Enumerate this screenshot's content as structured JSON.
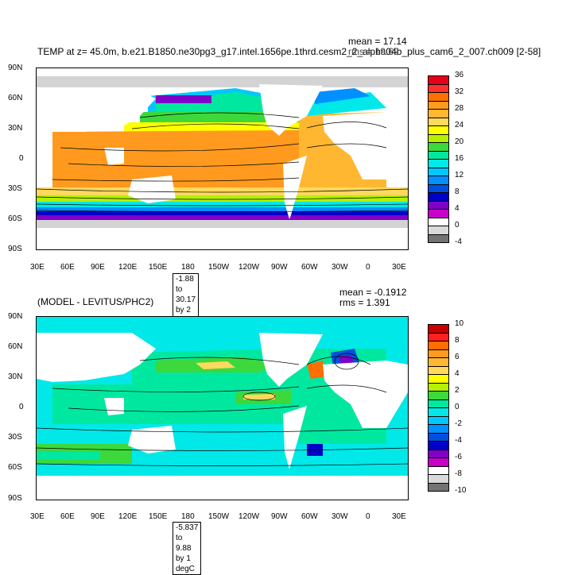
{
  "panels": [
    {
      "id": "top",
      "title": "TEMP at z=  45.0m, b.e21.B1850.ne30pg3_g17.intel.1656pe.1thrd.cesm2_2_alpha04b_plus_cam6_2_007.ch009 [2-58]",
      "mean": "mean = 17.14",
      "rms": "rms = 19.69",
      "range": "-1.88 to 30.17 by 2 degC",
      "lat_ticks": [
        "90N",
        "60N",
        "30N",
        "0",
        "30S",
        "60S",
        "90S"
      ],
      "lon_ticks": [
        "30E",
        "60E",
        "90E",
        "120E",
        "150E",
        "180",
        "150W",
        "120W",
        "90W",
        "60W",
        "30W",
        "0",
        "30E"
      ],
      "colorbar": {
        "labels": [
          "36",
          "32",
          "28",
          "24",
          "20",
          "16",
          "12",
          "8",
          "4",
          "0",
          "-4"
        ],
        "colors": [
          "#e8001a",
          "#ff3030",
          "#ff7000",
          "#ff9a1e",
          "#ffb732",
          "#ffd95e",
          "#ffff00",
          "#b4f000",
          "#3cd83c",
          "#00e8a0",
          "#00e8e8",
          "#00c8ff",
          "#0090ff",
          "#0050e0",
          "#0000c8",
          "#8000c8",
          "#c800c8",
          "#ffffff",
          "#d9d9d9",
          "#737373"
        ]
      }
    },
    {
      "id": "bottom",
      "title": "(MODEL - LEVITUS/PHC2)",
      "mean": "mean = -0.1912",
      "rms": "rms = 1.391",
      "range": "-5.837 to 9.88 by 1 degC",
      "lat_ticks": [
        "90N",
        "60N",
        "30N",
        "0",
        "30S",
        "60S",
        "90S"
      ],
      "lon_ticks": [
        "30E",
        "60E",
        "90E",
        "120E",
        "150E",
        "180",
        "150W",
        "120W",
        "90W",
        "60W",
        "30W",
        "0",
        "30E"
      ],
      "colorbar": {
        "labels": [
          "10",
          "8",
          "6",
          "4",
          "2",
          "0",
          "-2",
          "-4",
          "-6",
          "-8",
          "-10"
        ],
        "colors": [
          "#c80000",
          "#ff2020",
          "#ff6e00",
          "#ff9a1e",
          "#ffb732",
          "#ffd95e",
          "#ffff00",
          "#b4f000",
          "#3cd83c",
          "#00e8a0",
          "#00e8e8",
          "#00c8ff",
          "#0090ff",
          "#0050e0",
          "#0000c8",
          "#8000c8",
          "#c800c8",
          "#ffffff",
          "#d9d9d9",
          "#737373"
        ]
      }
    }
  ],
  "palette": {
    "land": "#ffffff",
    "ice": "#d3d3d3",
    "frame": "#000000"
  }
}
